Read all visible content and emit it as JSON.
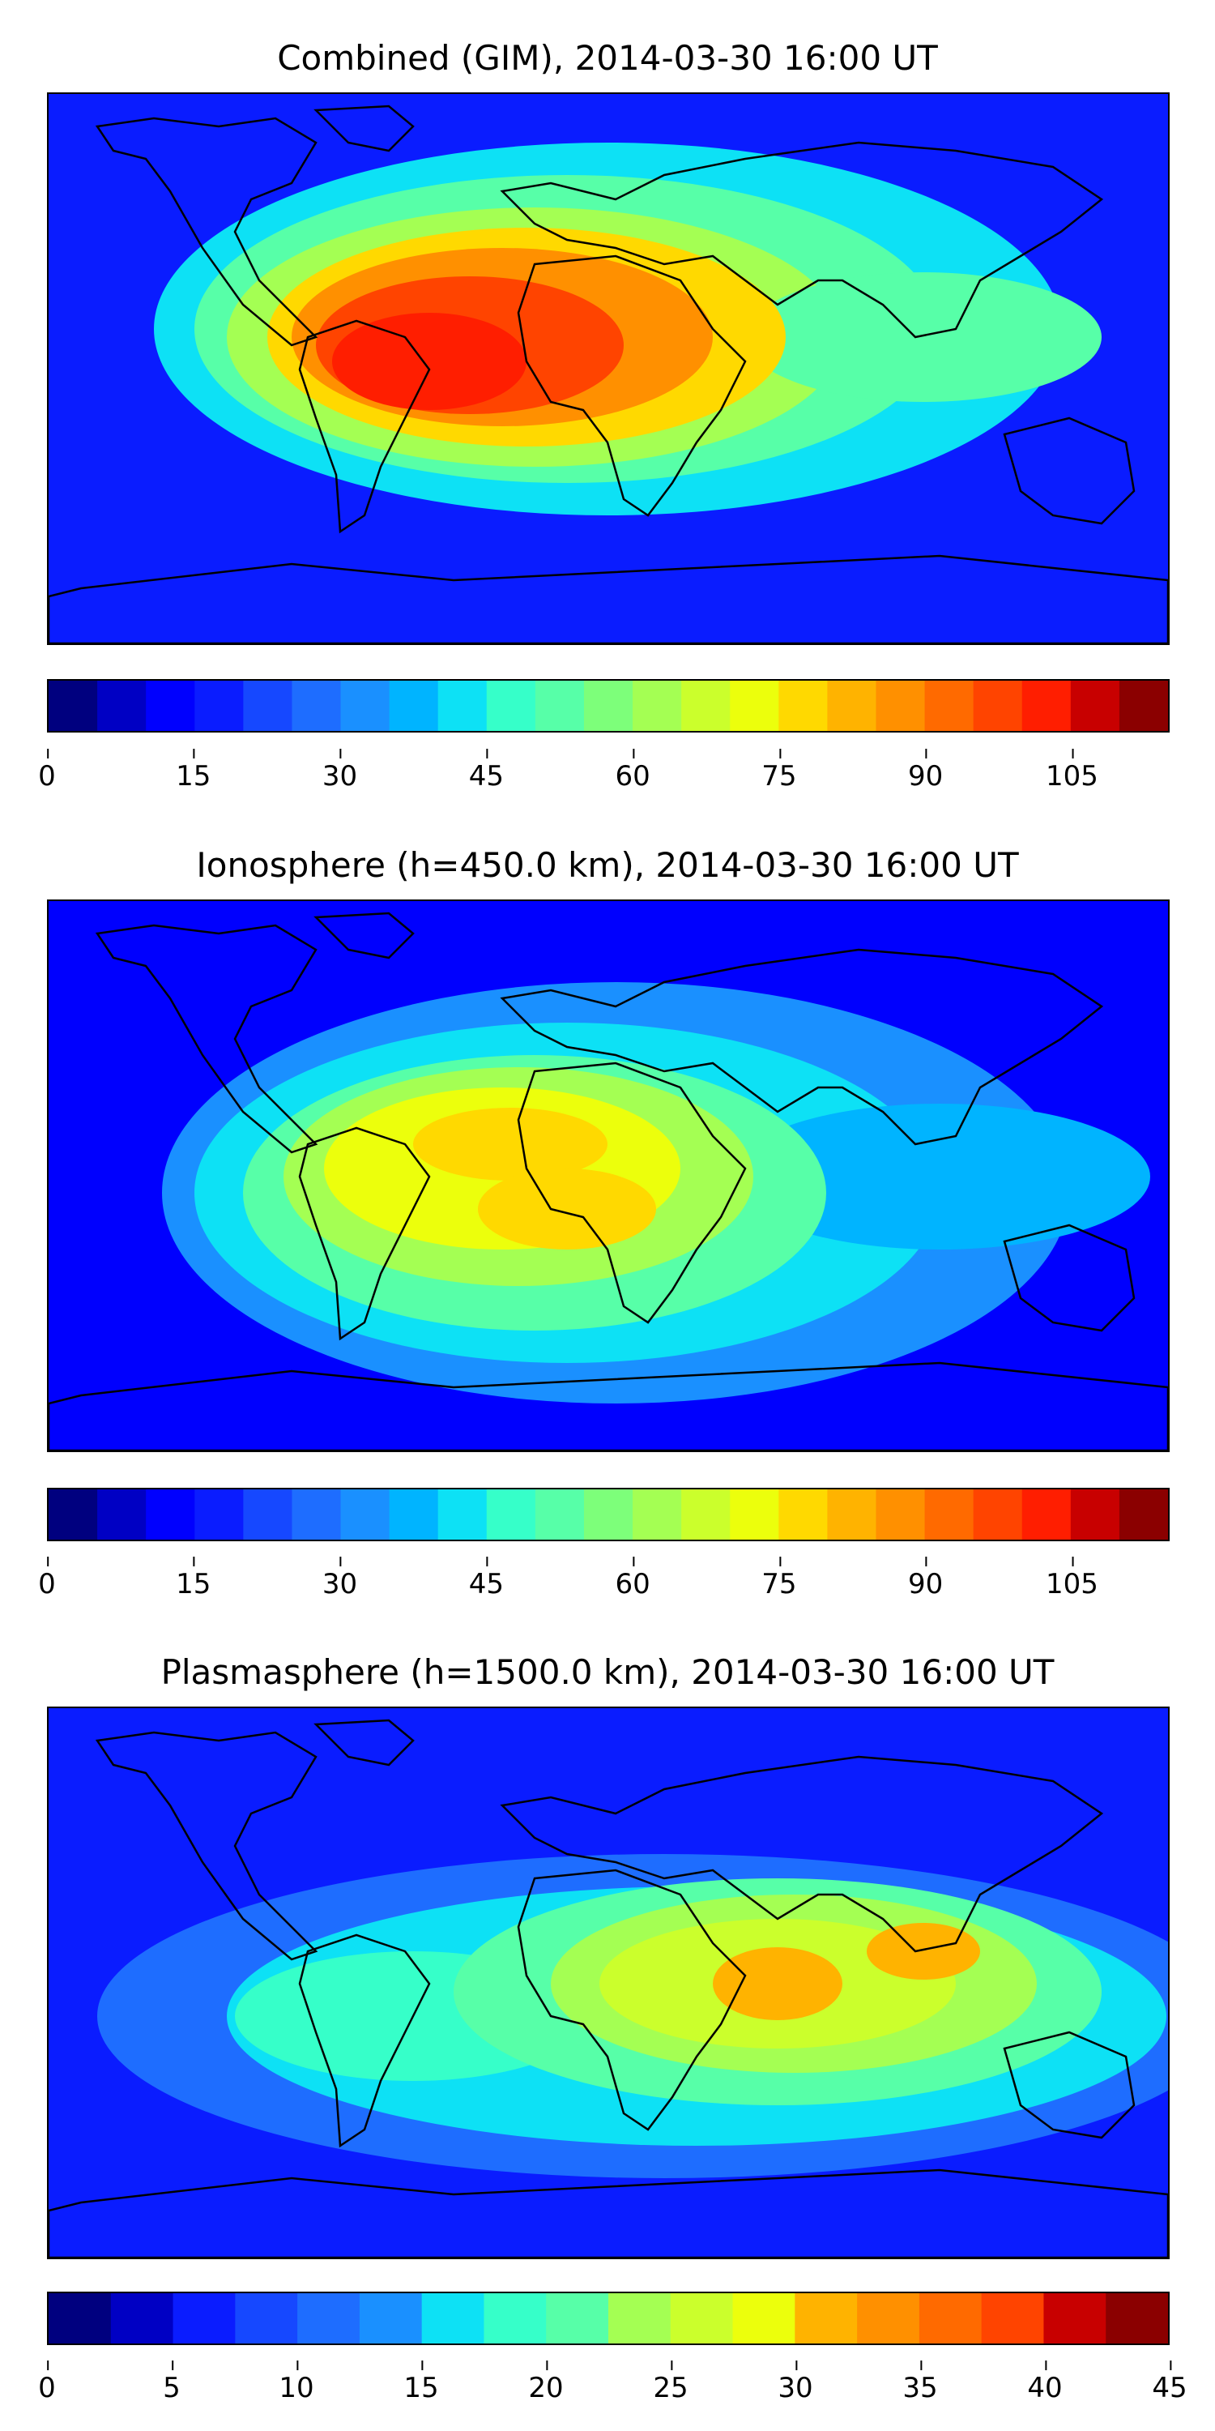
{
  "colors": {
    "level_palette": [
      "#00007f",
      "#0000c4",
      "#0000fe",
      "#0a1cff",
      "#1648ff",
      "#1e6dff",
      "#1a90ff",
      "#00b4ff",
      "#0de1f5",
      "#36ffc9",
      "#57ffa8",
      "#7dff7a",
      "#a4ff53",
      "#cbff2c",
      "#ecff0c",
      "#ffd900",
      "#ffb300",
      "#ff9000",
      "#ff6a00",
      "#ff4400",
      "#ff1e00",
      "#c80000",
      "#8b0000"
    ],
    "land_outline": "#000000"
  },
  "chart_data": [
    {
      "type": "heatmap",
      "title": "Combined (GIM), 2014-03-30 16:00 UT",
      "colorbar": {
        "min": 0,
        "max": 115,
        "step": 5,
        "ticks": [
          "0",
          "15",
          "30",
          "45",
          "60",
          "75",
          "90",
          "105"
        ],
        "tick_values": [
          0,
          15,
          30,
          45,
          60,
          75,
          90,
          105
        ]
      },
      "peak_value": 105,
      "peak_region": "South America / tropical Atlantic",
      "background_value": 15
    },
    {
      "type": "heatmap",
      "title": "Ionosphere  (h=450.0 km), 2014-03-30 16:00 UT",
      "colorbar": {
        "min": 0,
        "max": 115,
        "step": 5,
        "ticks": [
          "0",
          "15",
          "30",
          "45",
          "60",
          "75",
          "90",
          "105"
        ],
        "tick_values": [
          0,
          15,
          30,
          45,
          60,
          75,
          90,
          105
        ]
      },
      "peak_value": 85,
      "peak_region": "tropical Atlantic",
      "background_value": 10
    },
    {
      "type": "heatmap",
      "title": "Plasmasphere (h=1500.0 km), 2014-03-30 16:00 UT",
      "colorbar": {
        "min": 0,
        "max": 45,
        "step": 2.5,
        "ticks": [
          "0",
          "5",
          "10",
          "15",
          "20",
          "25",
          "30",
          "35",
          "40",
          "45"
        ],
        "tick_values": [
          0,
          5,
          10,
          15,
          20,
          25,
          30,
          35,
          40,
          45
        ]
      },
      "peak_value": 30,
      "peak_region": "East Africa / India",
      "background_value": 5
    }
  ]
}
